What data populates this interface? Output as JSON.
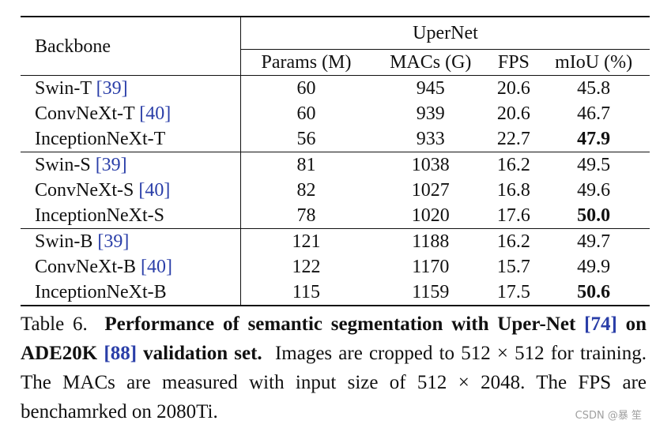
{
  "table": {
    "header": {
      "backbone": "Backbone",
      "group": "UperNet",
      "columns": [
        "Params (M)",
        "MACs (G)",
        "FPS",
        "mIoU (%)"
      ]
    },
    "groups": [
      [
        {
          "name": "Swin-T",
          "cite": "[39]",
          "params": "60",
          "macs": "945",
          "fps": "20.6",
          "miou": "45.8",
          "bold": false
        },
        {
          "name": "ConvNeXt-T",
          "cite": "[40]",
          "params": "60",
          "macs": "939",
          "fps": "20.6",
          "miou": "46.7",
          "bold": false
        },
        {
          "name": "InceptionNeXt-T",
          "cite": "",
          "params": "56",
          "macs": "933",
          "fps": "22.7",
          "miou": "47.9",
          "bold": true
        }
      ],
      [
        {
          "name": "Swin-S",
          "cite": "[39]",
          "params": "81",
          "macs": "1038",
          "fps": "16.2",
          "miou": "49.5",
          "bold": false
        },
        {
          "name": "ConvNeXt-S",
          "cite": "[40]",
          "params": "82",
          "macs": "1027",
          "fps": "16.8",
          "miou": "49.6",
          "bold": false
        },
        {
          "name": "InceptionNeXt-S",
          "cite": "",
          "params": "78",
          "macs": "1020",
          "fps": "17.6",
          "miou": "50.0",
          "bold": true
        }
      ],
      [
        {
          "name": "Swin-B",
          "cite": "[39]",
          "params": "121",
          "macs": "1188",
          "fps": "16.2",
          "miou": "49.7",
          "bold": false
        },
        {
          "name": "ConvNeXt-B",
          "cite": "[40]",
          "params": "122",
          "macs": "1170",
          "fps": "15.7",
          "miou": "49.9",
          "bold": false
        },
        {
          "name": "InceptionNeXt-B",
          "cite": "",
          "params": "115",
          "macs": "1159",
          "fps": "17.5",
          "miou": "50.6",
          "bold": true
        }
      ]
    ]
  },
  "caption": {
    "label": "Table 6.",
    "bold_part1": "Performance of semantic segmentation with Uper-Net",
    "cite1": "[74]",
    "bold_part2": "on ADE20K",
    "cite2": "[88]",
    "bold_part3": "validation set.",
    "rest": "Images are cropped to 512 × 512 for training. The MACs are measured with input size of 512 × 2048. The FPS are benchamrked on 2080Ti."
  },
  "watermark": "CSDN @暴  笙"
}
